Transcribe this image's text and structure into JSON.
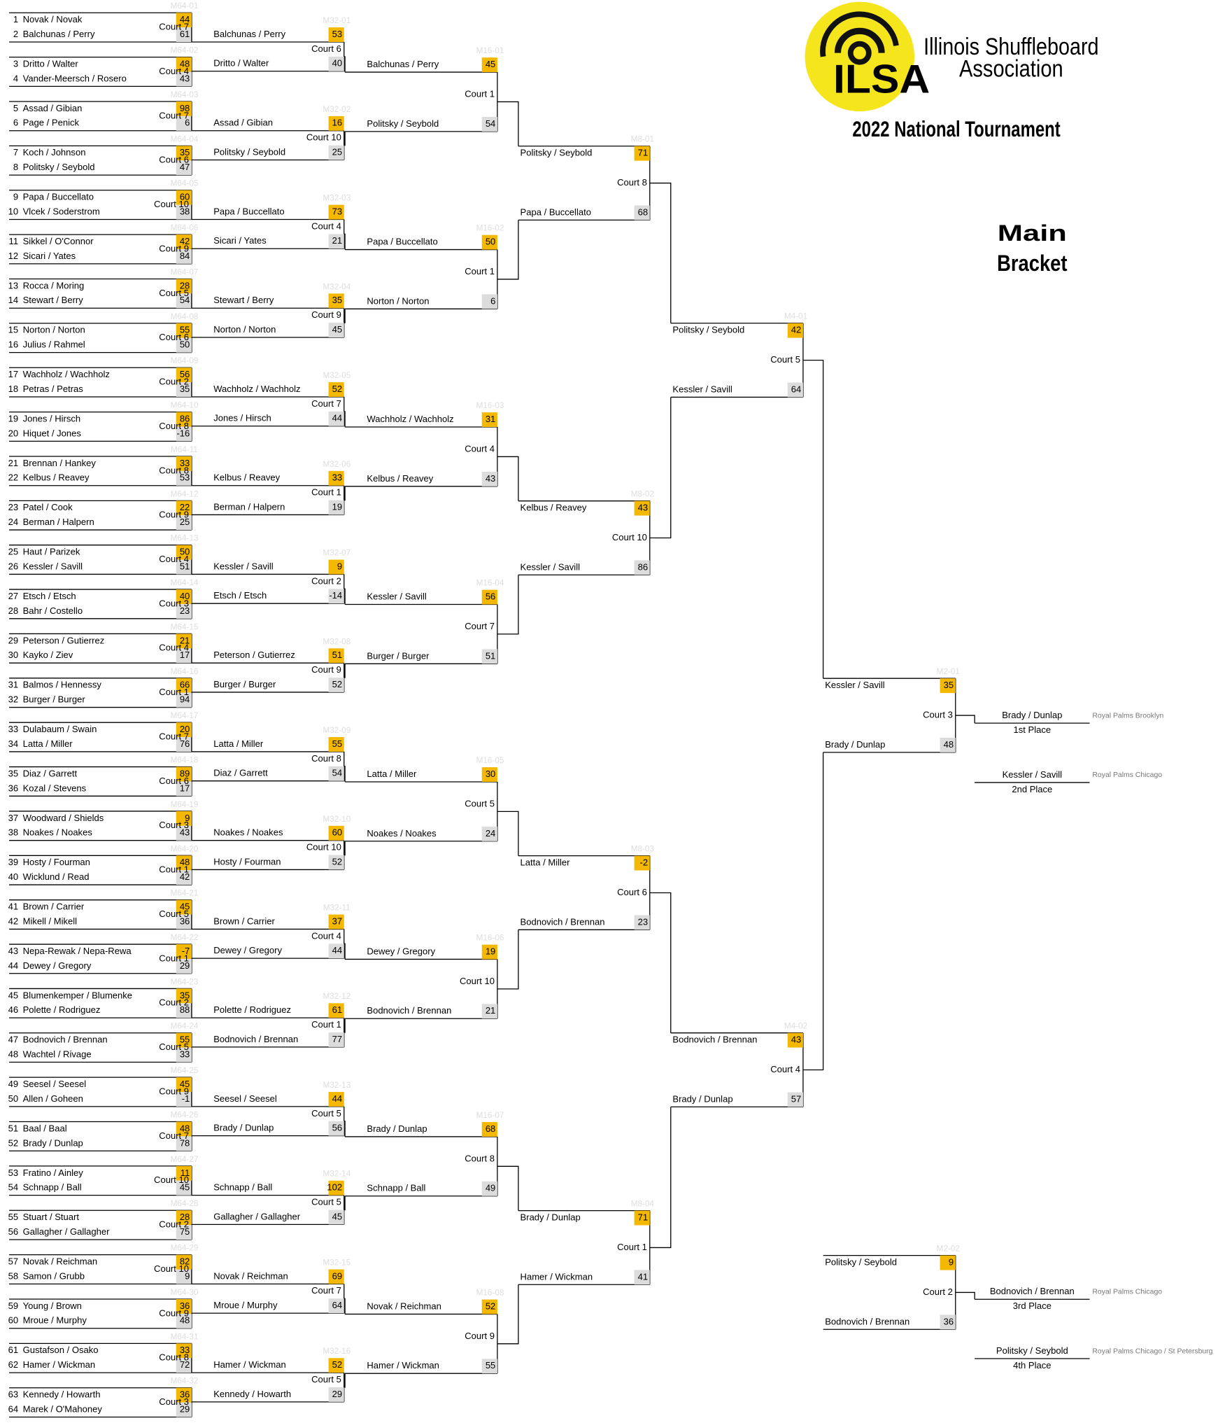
{
  "header": {
    "org_line1": "Illinois Shuffleboard",
    "org_line2": "Association",
    "logo_text": "ILSA",
    "title": "2022 National Tournament",
    "section_line1": "Main",
    "section_line2": "Bracket"
  },
  "rounds": [
    {
      "matches": [
        {
          "id": "M64-01",
          "court": "Court 7",
          "top": {
            "seed": 1,
            "team": "Novak / Novak",
            "score": 44
          },
          "bottom": {
            "seed": 2,
            "team": "Balchunas / Perry",
            "score": 61
          }
        },
        {
          "id": "M64-02",
          "court": "Court 4",
          "top": {
            "seed": 3,
            "team": "Dritto / Walter",
            "score": 48
          },
          "bottom": {
            "seed": 4,
            "team": "Vander-Meersch / Rosero",
            "score": 43
          }
        },
        {
          "id": "M64-03",
          "court": "Court 7",
          "top": {
            "seed": 5,
            "team": "Assad / Gibian",
            "score": 98
          },
          "bottom": {
            "seed": 6,
            "team": "Page / Penick",
            "score": 6
          }
        },
        {
          "id": "M64-04",
          "court": "Court 6",
          "top": {
            "seed": 7,
            "team": "Koch / Johnson",
            "score": 35
          },
          "bottom": {
            "seed": 8,
            "team": "Politsky / Seybold",
            "score": 47
          }
        },
        {
          "id": "M64-05",
          "court": "Court 10",
          "top": {
            "seed": 9,
            "team": "Papa / Buccellato",
            "score": 60
          },
          "bottom": {
            "seed": 10,
            "team": "Vlcek / Soderstrom",
            "score": 38
          }
        },
        {
          "id": "M64-06",
          "court": "Court 9",
          "top": {
            "seed": 11,
            "team": "Sikkel / O'Connor",
            "score": 42
          },
          "bottom": {
            "seed": 12,
            "team": "Sicari / Yates",
            "score": 84
          }
        },
        {
          "id": "M64-07",
          "court": "Court 5",
          "top": {
            "seed": 13,
            "team": "Rocca / Moring",
            "score": 28
          },
          "bottom": {
            "seed": 14,
            "team": "Stewart / Berry",
            "score": 54
          }
        },
        {
          "id": "M64-08",
          "court": "Court 6",
          "top": {
            "seed": 15,
            "team": "Norton / Norton",
            "score": 55
          },
          "bottom": {
            "seed": 16,
            "team": "Julius / Rahmel",
            "score": 50
          }
        },
        {
          "id": "M64-09",
          "court": "Court 2",
          "top": {
            "seed": 17,
            "team": "Wachholz / Wachholz",
            "score": 56
          },
          "bottom": {
            "seed": 18,
            "team": "Petras / Petras",
            "score": 35
          }
        },
        {
          "id": "M64-10",
          "court": "Court 8",
          "top": {
            "seed": 19,
            "team": "Jones / Hirsch",
            "score": 86
          },
          "bottom": {
            "seed": 20,
            "team": "Hiquet / Jones",
            "score": -16
          }
        },
        {
          "id": "M64-11",
          "court": "Court 8",
          "top": {
            "seed": 21,
            "team": "Brennan / Hankey",
            "score": 33
          },
          "bottom": {
            "seed": 22,
            "team": "Kelbus / Reavey",
            "score": 53
          }
        },
        {
          "id": "M64-12",
          "court": "Court 9",
          "top": {
            "seed": 23,
            "team": "Patel / Cook",
            "score": 22
          },
          "bottom": {
            "seed": 24,
            "team": "Berman / Halpern",
            "score": 25
          }
        },
        {
          "id": "M64-13",
          "court": "Court 4",
          "top": {
            "seed": 25,
            "team": "Haut / Parizek",
            "score": 50
          },
          "bottom": {
            "seed": 26,
            "team": "Kessler / Savill",
            "score": 51
          }
        },
        {
          "id": "M64-14",
          "court": "Court 3",
          "top": {
            "seed": 27,
            "team": "Etsch / Etsch",
            "score": 40
          },
          "bottom": {
            "seed": 28,
            "team": "Bahr / Costello",
            "score": 23
          }
        },
        {
          "id": "M64-15",
          "court": "Court 4",
          "top": {
            "seed": 29,
            "team": "Peterson / Gutierrez",
            "score": 21
          },
          "bottom": {
            "seed": 30,
            "team": "Kayko / Ziev",
            "score": 17
          }
        },
        {
          "id": "M64-16",
          "court": "Court 1",
          "top": {
            "seed": 31,
            "team": "Balmos / Hennessy",
            "score": 66
          },
          "bottom": {
            "seed": 32,
            "team": "Burger / Burger",
            "score": 94
          }
        },
        {
          "id": "M64-17",
          "court": "Court 7",
          "top": {
            "seed": 33,
            "team": "Dulabaum / Swain",
            "score": 20
          },
          "bottom": {
            "seed": 34,
            "team": "Latta / Miller",
            "score": 76
          }
        },
        {
          "id": "M64-18",
          "court": "Court 6",
          "top": {
            "seed": 35,
            "team": "Diaz / Garrett",
            "score": 89
          },
          "bottom": {
            "seed": 36,
            "team": "Kozal / Stevens",
            "score": 17
          }
        },
        {
          "id": "M64-19",
          "court": "Court 3",
          "top": {
            "seed": 37,
            "team": "Woodward / Shields",
            "score": 9
          },
          "bottom": {
            "seed": 38,
            "team": "Noakes / Noakes",
            "score": 43
          }
        },
        {
          "id": "M64-20",
          "court": "Court 1",
          "top": {
            "seed": 39,
            "team": "Hosty / Fourman",
            "score": 48
          },
          "bottom": {
            "seed": 40,
            "team": "Wicklund / Read",
            "score": 42
          }
        },
        {
          "id": "M64-21",
          "court": "Court 5",
          "top": {
            "seed": 41,
            "team": "Brown / Carrier",
            "score": 45
          },
          "bottom": {
            "seed": 42,
            "team": "Mikell / Mikell",
            "score": 36
          }
        },
        {
          "id": "M64-22",
          "court": "Court 1",
          "top": {
            "seed": 43,
            "team": "Nepa-Rewak / Nepa-Rewa",
            "score": -7
          },
          "bottom": {
            "seed": 44,
            "team": "Dewey / Gregory",
            "score": 29
          }
        },
        {
          "id": "M64-23",
          "court": "Court 2",
          "top": {
            "seed": 45,
            "team": "Blumenkemper / Blumenke",
            "score": 35
          },
          "bottom": {
            "seed": 46,
            "team": "Polette / Rodriguez",
            "score": 88
          }
        },
        {
          "id": "M64-24",
          "court": "Court 5",
          "top": {
            "seed": 47,
            "team": "Bodnovich / Brennan",
            "score": 55
          },
          "bottom": {
            "seed": 48,
            "team": "Wachtel / Rivage",
            "score": 33
          }
        },
        {
          "id": "M64-25",
          "court": "Court 9",
          "top": {
            "seed": 49,
            "team": "Seesel / Seesel",
            "score": 45
          },
          "bottom": {
            "seed": 50,
            "team": "Allen / Goheen",
            "score": -1
          }
        },
        {
          "id": "M64-26",
          "court": "Court 7",
          "top": {
            "seed": 51,
            "team": "Baal / Baal",
            "score": 48
          },
          "bottom": {
            "seed": 52,
            "team": "Brady / Dunlap",
            "score": 78
          }
        },
        {
          "id": "M64-27",
          "court": "Court 10",
          "top": {
            "seed": 53,
            "team": "Fratino / Ainley",
            "score": 11
          },
          "bottom": {
            "seed": 54,
            "team": "Schnapp / Ball",
            "score": 45
          }
        },
        {
          "id": "M64-28",
          "court": "Court 2",
          "top": {
            "seed": 55,
            "team": "Stuart / Stuart",
            "score": 28
          },
          "bottom": {
            "seed": 56,
            "team": "Gallagher / Gallagher",
            "score": 75
          }
        },
        {
          "id": "M64-29",
          "court": "Court 10",
          "top": {
            "seed": 57,
            "team": "Novak / Reichman",
            "score": 82
          },
          "bottom": {
            "seed": 58,
            "team": "Samon / Grubb",
            "score": 9
          }
        },
        {
          "id": "M64-30",
          "court": "Court 9",
          "top": {
            "seed": 59,
            "team": "Young / Brown",
            "score": 36
          },
          "bottom": {
            "seed": 60,
            "team": "Mroue / Murphy",
            "score": 48
          }
        },
        {
          "id": "M64-31",
          "court": "Court 8",
          "top": {
            "seed": 61,
            "team": "Gustafson / Osako",
            "score": 33
          },
          "bottom": {
            "seed": 62,
            "team": "Hamer / Wickman",
            "score": 72
          }
        },
        {
          "id": "M64-32",
          "court": "Court 3",
          "top": {
            "seed": 63,
            "team": "Kennedy / Howarth",
            "score": 36
          },
          "bottom": {
            "seed": 64,
            "team": "Marek / O'Mahoney",
            "score": 29
          }
        }
      ]
    },
    {
      "matches": [
        {
          "id": "M32-01",
          "court": "Court 6",
          "top": {
            "team": "Balchunas / Perry",
            "score": 53
          },
          "bottom": {
            "team": "Dritto / Walter",
            "score": 40
          }
        },
        {
          "id": "M32-02",
          "court": "Court 10",
          "top": {
            "team": "Assad / Gibian",
            "score": 16
          },
          "bottom": {
            "team": "Politsky / Seybold",
            "score": 25
          }
        },
        {
          "id": "M32-03",
          "court": "Court 4",
          "top": {
            "team": "Papa / Buccellato",
            "score": 73
          },
          "bottom": {
            "team": "Sicari / Yates",
            "score": 21
          }
        },
        {
          "id": "M32-04",
          "court": "Court 9",
          "top": {
            "team": "Stewart / Berry",
            "score": 35
          },
          "bottom": {
            "team": "Norton / Norton",
            "score": 45
          }
        },
        {
          "id": "M32-05",
          "court": "Court 7",
          "top": {
            "team": "Wachholz / Wachholz",
            "score": 52
          },
          "bottom": {
            "team": "Jones / Hirsch",
            "score": 44
          }
        },
        {
          "id": "M32-06",
          "court": "Court 1",
          "top": {
            "team": "Kelbus / Reavey",
            "score": 33
          },
          "bottom": {
            "team": "Berman / Halpern",
            "score": 19
          }
        },
        {
          "id": "M32-07",
          "court": "Court 2",
          "top": {
            "team": "Kessler / Savill",
            "score": 9
          },
          "bottom": {
            "team": "Etsch / Etsch",
            "score": -14
          }
        },
        {
          "id": "M32-08",
          "court": "Court 9",
          "top": {
            "team": "Peterson / Gutierrez",
            "score": 51
          },
          "bottom": {
            "team": "Burger / Burger",
            "score": 52
          }
        },
        {
          "id": "M32-09",
          "court": "Court 8",
          "top": {
            "team": "Latta / Miller",
            "score": 55
          },
          "bottom": {
            "team": "Diaz / Garrett",
            "score": 54
          }
        },
        {
          "id": "M32-10",
          "court": "Court 10",
          "top": {
            "team": "Noakes / Noakes",
            "score": 60
          },
          "bottom": {
            "team": "Hosty / Fourman",
            "score": 52
          }
        },
        {
          "id": "M32-11",
          "court": "Court 4",
          "top": {
            "team": "Brown / Carrier",
            "score": 37
          },
          "bottom": {
            "team": "Dewey / Gregory",
            "score": 44
          }
        },
        {
          "id": "M32-12",
          "court": "Court 1",
          "top": {
            "team": "Polette / Rodriguez",
            "score": 61
          },
          "bottom": {
            "team": "Bodnovich / Brennan",
            "score": 77
          }
        },
        {
          "id": "M32-13",
          "court": "Court 5",
          "top": {
            "team": "Seesel / Seesel",
            "score": 44
          },
          "bottom": {
            "team": "Brady / Dunlap",
            "score": 56
          }
        },
        {
          "id": "M32-14",
          "court": "Court 5",
          "top": {
            "team": "Schnapp / Ball",
            "score": 102
          },
          "bottom": {
            "team": "Gallagher / Gallagher",
            "score": 45
          }
        },
        {
          "id": "M32-15",
          "court": "Court 7",
          "top": {
            "team": "Novak / Reichman",
            "score": 69
          },
          "bottom": {
            "team": "Mroue / Murphy",
            "score": 64
          }
        },
        {
          "id": "M32-16",
          "court": "Court 5",
          "top": {
            "team": "Hamer / Wickman",
            "score": 52
          },
          "bottom": {
            "team": "Kennedy / Howarth",
            "score": 29
          }
        }
      ]
    },
    {
      "matches": [
        {
          "id": "M16-01",
          "court": "Court 1",
          "top": {
            "team": "Balchunas / Perry",
            "score": 45
          },
          "bottom": {
            "team": "Politsky / Seybold",
            "score": 54
          }
        },
        {
          "id": "M16-02",
          "court": "Court 1",
          "top": {
            "team": "Papa / Buccellato",
            "score": 50
          },
          "bottom": {
            "team": "Norton / Norton",
            "score": 6
          }
        },
        {
          "id": "M16-03",
          "court": "Court 4",
          "top": {
            "team": "Wachholz / Wachholz",
            "score": 31
          },
          "bottom": {
            "team": "Kelbus / Reavey",
            "score": 43
          }
        },
        {
          "id": "M16-04",
          "court": "Court 7",
          "top": {
            "team": "Kessler / Savill",
            "score": 56
          },
          "bottom": {
            "team": "Burger / Burger",
            "score": 51
          }
        },
        {
          "id": "M16-05",
          "court": "Court 5",
          "top": {
            "team": "Latta / Miller",
            "score": 30
          },
          "bottom": {
            "team": "Noakes / Noakes",
            "score": 24
          }
        },
        {
          "id": "M16-06",
          "court": "Court 10",
          "top": {
            "team": "Dewey / Gregory",
            "score": 19
          },
          "bottom": {
            "team": "Bodnovich / Brennan",
            "score": 21
          }
        },
        {
          "id": "M16-07",
          "court": "Court 8",
          "top": {
            "team": "Brady / Dunlap",
            "score": 68
          },
          "bottom": {
            "team": "Schnapp / Ball",
            "score": 49
          }
        },
        {
          "id": "M16-08",
          "court": "Court 9",
          "top": {
            "team": "Novak / Reichman",
            "score": 52
          },
          "bottom": {
            "team": "Hamer / Wickman",
            "score": 55
          }
        }
      ]
    },
    {
      "matches": [
        {
          "id": "M8-01",
          "court": "Court 8",
          "top": {
            "team": "Politsky / Seybold",
            "score": 71
          },
          "bottom": {
            "team": "Papa / Buccellato",
            "score": 68
          }
        },
        {
          "id": "M8-02",
          "court": "Court 10",
          "top": {
            "team": "Kelbus / Reavey",
            "score": 43
          },
          "bottom": {
            "team": "Kessler / Savill",
            "score": 86
          }
        },
        {
          "id": "M8-03",
          "court": "Court 6",
          "top": {
            "team": "Latta / Miller",
            "score": -2
          },
          "bottom": {
            "team": "Bodnovich / Brennan",
            "score": 23
          }
        },
        {
          "id": "M8-04",
          "court": "Court 1",
          "top": {
            "team": "Brady / Dunlap",
            "score": 71
          },
          "bottom": {
            "team": "Hamer / Wickman",
            "score": 41
          }
        }
      ]
    },
    {
      "matches": [
        {
          "id": "M4-01",
          "court": "Court 5",
          "top": {
            "team": "Politsky / Seybold",
            "score": 42
          },
          "bottom": {
            "team": "Kessler / Savill",
            "score": 64
          }
        },
        {
          "id": "M4-02",
          "court": "Court 4",
          "top": {
            "team": "Bodnovich / Brennan",
            "score": 43
          },
          "bottom": {
            "team": "Brady / Dunlap",
            "score": 57
          }
        }
      ]
    },
    {
      "matches": [
        {
          "id": "M2-01",
          "court": "Court 3",
          "top": {
            "team": "Kessler / Savill",
            "score": 35
          },
          "bottom": {
            "team": "Brady / Dunlap",
            "score": 48
          }
        },
        {
          "id": "M2-02",
          "court": "Court 2",
          "top": {
            "team": "Politsky / Seybold",
            "score": 9
          },
          "bottom": {
            "team": "Bodnovich / Brennan",
            "score": 36
          }
        }
      ]
    }
  ],
  "placements": [
    {
      "team": "Brady / Dunlap",
      "place": "1st Place",
      "venue": "Royal Palms Brooklyn"
    },
    {
      "team": "Kessler / Savill",
      "place": "2nd Place",
      "venue": "Royal Palms Chicago"
    },
    {
      "team": "Bodnovich / Brennan",
      "place": "3rd Place",
      "venue": "Royal Palms Chicago"
    },
    {
      "team": "Politsky / Seybold",
      "place": "4th Place",
      "venue": "Royal Palms Chicago / St Petersburg"
    }
  ]
}
